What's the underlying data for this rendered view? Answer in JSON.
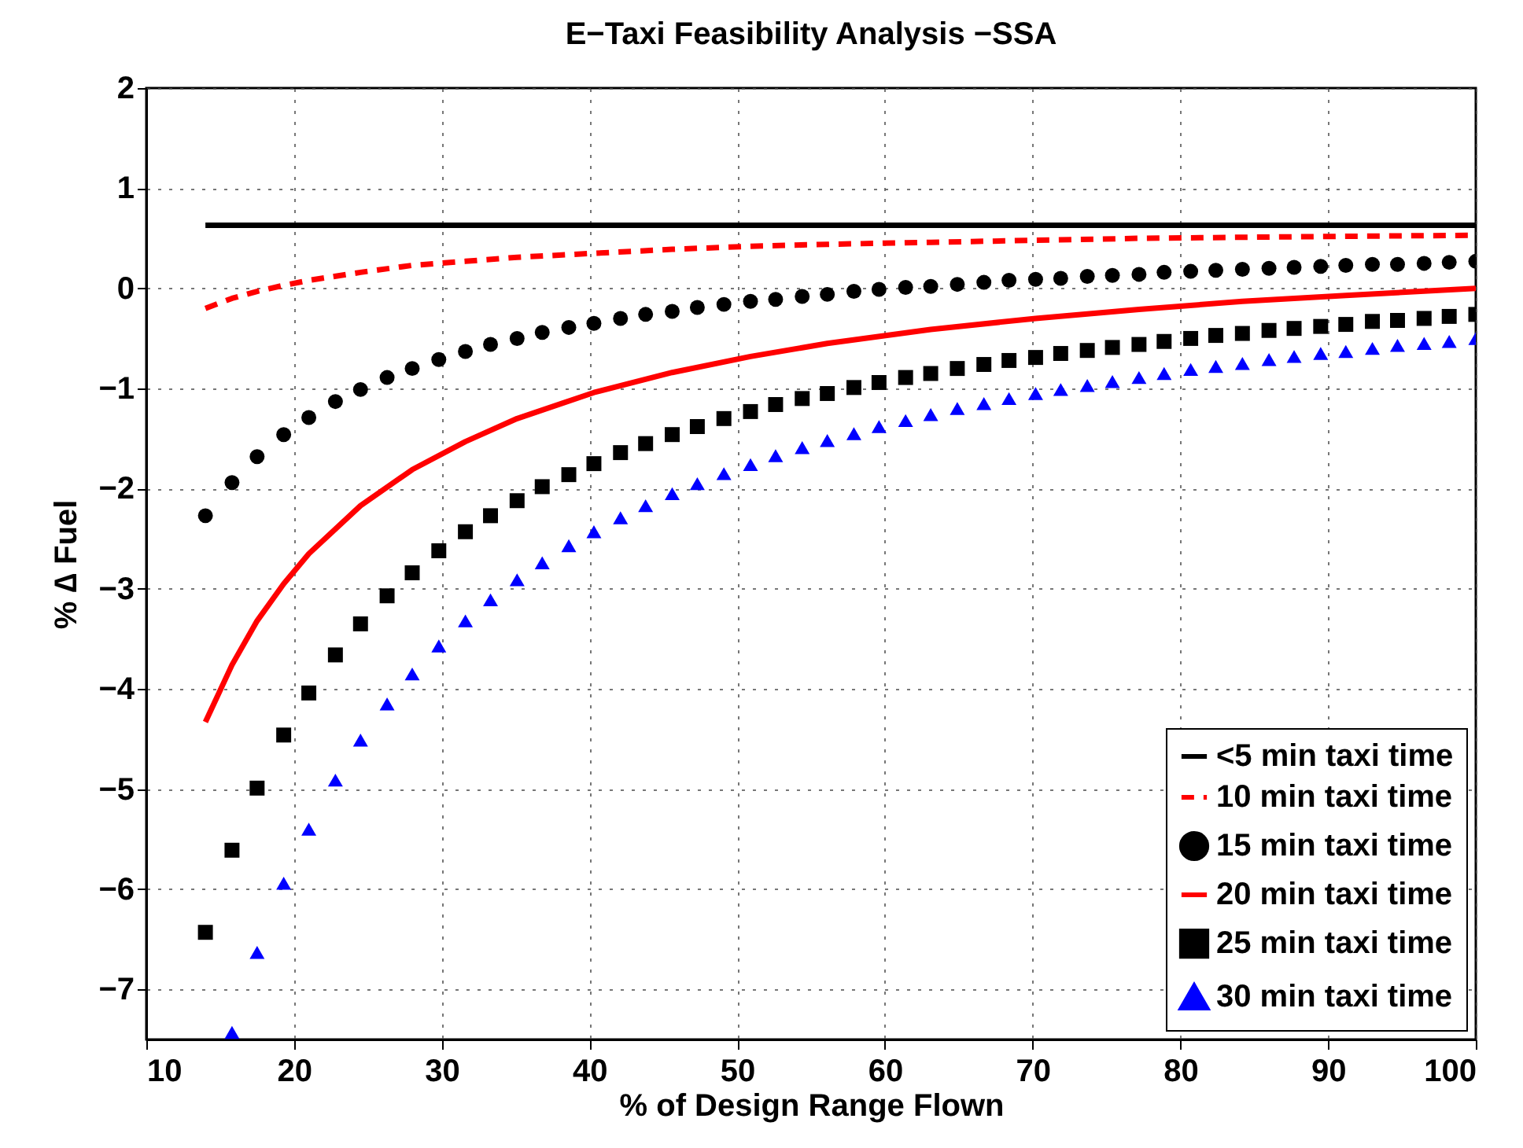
{
  "chart_data": {
    "type": "line",
    "title": "E−Taxi Feasibility Analysis −SSA",
    "xlabel": "% of Design Range Flown",
    "ylabel": "% ∆ Fuel",
    "xlim": [
      10,
      100
    ],
    "xticks": [
      10,
      20,
      30,
      40,
      50,
      60,
      70,
      80,
      90,
      100
    ],
    "ylim": [
      -7.5,
      2
    ],
    "yticks": [
      -7,
      -6,
      -5,
      -4,
      -3,
      -2,
      -1,
      0,
      1,
      2
    ],
    "grid": true,
    "legend": "bottom right",
    "x": [
      14,
      15.8,
      17.5,
      19.3,
      21,
      22.8,
      24.5,
      26.3,
      28,
      29.8,
      31.6,
      33.3,
      35.1,
      36.8,
      38.6,
      40.3,
      42.1,
      43.8,
      45.6,
      47.3,
      49.1,
      50.9,
      52.6,
      54.4,
      56.1,
      57.9,
      59.6,
      61.4,
      63.1,
      64.9,
      66.7,
      68.4,
      70.2,
      71.9,
      73.7,
      75.4,
      77.2,
      78.9,
      80.7,
      82.4,
      84.2,
      86,
      87.7,
      89.5,
      91.2,
      93,
      94.7,
      96.5,
      98.2,
      100
    ],
    "series": [
      {
        "name": "<5 min taxi time",
        "color": "#000000",
        "line_style": "solid",
        "marker": "none",
        "x": [
          14,
          100
        ],
        "values": [
          0.63,
          0.63
        ]
      },
      {
        "name": "10 min taxi time",
        "color": "#ff0000",
        "line_style": "dashed",
        "marker": "none",
        "x": [
          14,
          15.8,
          17.5,
          19.3,
          21,
          24.5,
          28,
          31.6,
          35.1,
          40.3,
          45.6,
          50.9,
          56.1,
          63.1,
          70.2,
          77.2,
          84.2,
          91.2,
          100
        ],
        "values": [
          -0.2,
          -0.1,
          -0.03,
          0.03,
          0.08,
          0.16,
          0.23,
          0.27,
          0.31,
          0.35,
          0.39,
          0.42,
          0.44,
          0.46,
          0.48,
          0.5,
          0.51,
          0.52,
          0.53
        ]
      },
      {
        "name": "15 min taxi time",
        "type": "scatter",
        "color": "#000000",
        "marker": "circle",
        "values": [
          -2.27,
          -1.94,
          -1.68,
          -1.46,
          -1.29,
          -1.13,
          -1.01,
          -0.89,
          -0.8,
          -0.71,
          -0.63,
          -0.56,
          -0.5,
          -0.44,
          -0.39,
          -0.35,
          -0.3,
          -0.26,
          -0.23,
          -0.19,
          -0.16,
          -0.13,
          -0.11,
          -0.08,
          -0.06,
          -0.03,
          -0.01,
          0.01,
          0.02,
          0.04,
          0.06,
          0.08,
          0.09,
          0.1,
          0.12,
          0.13,
          0.14,
          0.16,
          0.17,
          0.18,
          0.19,
          0.2,
          0.21,
          0.22,
          0.23,
          0.24,
          0.24,
          0.25,
          0.26,
          0.27
        ]
      },
      {
        "name": "20 min taxi time",
        "color": "#ff0000",
        "line_style": "solid",
        "marker": "none",
        "x": [
          14,
          15.8,
          17.5,
          19.3,
          21,
          24.5,
          28,
          31.6,
          35.1,
          40.3,
          45.6,
          50.9,
          56.1,
          63.1,
          70.2,
          77.2,
          84.2,
          91.2,
          100
        ],
        "values": [
          -4.33,
          -3.76,
          -3.32,
          -2.95,
          -2.65,
          -2.17,
          -1.81,
          -1.53,
          -1.3,
          -1.04,
          -0.84,
          -0.68,
          -0.55,
          -0.41,
          -0.3,
          -0.21,
          -0.13,
          -0.07,
          0
        ]
      },
      {
        "name": "25 min taxi time",
        "type": "scatter",
        "color": "#000000",
        "marker": "square",
        "values": [
          -6.43,
          -5.61,
          -4.99,
          -4.46,
          -4.04,
          -3.66,
          -3.35,
          -3.07,
          -2.84,
          -2.62,
          -2.43,
          -2.27,
          -2.12,
          -1.98,
          -1.86,
          -1.75,
          -1.64,
          -1.55,
          -1.46,
          -1.38,
          -1.3,
          -1.23,
          -1.16,
          -1.1,
          -1.05,
          -0.99,
          -0.94,
          -0.89,
          -0.85,
          -0.8,
          -0.76,
          -0.72,
          -0.69,
          -0.65,
          -0.62,
          -0.59,
          -0.56,
          -0.53,
          -0.5,
          -0.47,
          -0.45,
          -0.42,
          -0.4,
          -0.38,
          -0.36,
          -0.33,
          -0.32,
          -0.3,
          -0.28,
          -0.26
        ]
      },
      {
        "name": "30 min taxi time",
        "type": "scatter",
        "color": "#0000ff",
        "marker": "triangle",
        "values": [
          null,
          -7.43,
          -6.63,
          -5.94,
          -5.4,
          -4.91,
          -4.51,
          -4.15,
          -3.85,
          -3.57,
          -3.32,
          -3.11,
          -2.91,
          -2.74,
          -2.57,
          -2.43,
          -2.29,
          -2.17,
          -2.05,
          -1.95,
          -1.85,
          -1.76,
          -1.67,
          -1.59,
          -1.52,
          -1.45,
          -1.38,
          -1.32,
          -1.26,
          -1.2,
          -1.15,
          -1.1,
          -1.05,
          -1.01,
          -0.97,
          -0.93,
          -0.89,
          -0.85,
          -0.81,
          -0.78,
          -0.75,
          -0.71,
          -0.68,
          -0.65,
          -0.63,
          -0.6,
          -0.57,
          -0.55,
          -0.53,
          -0.5
        ]
      }
    ]
  }
}
